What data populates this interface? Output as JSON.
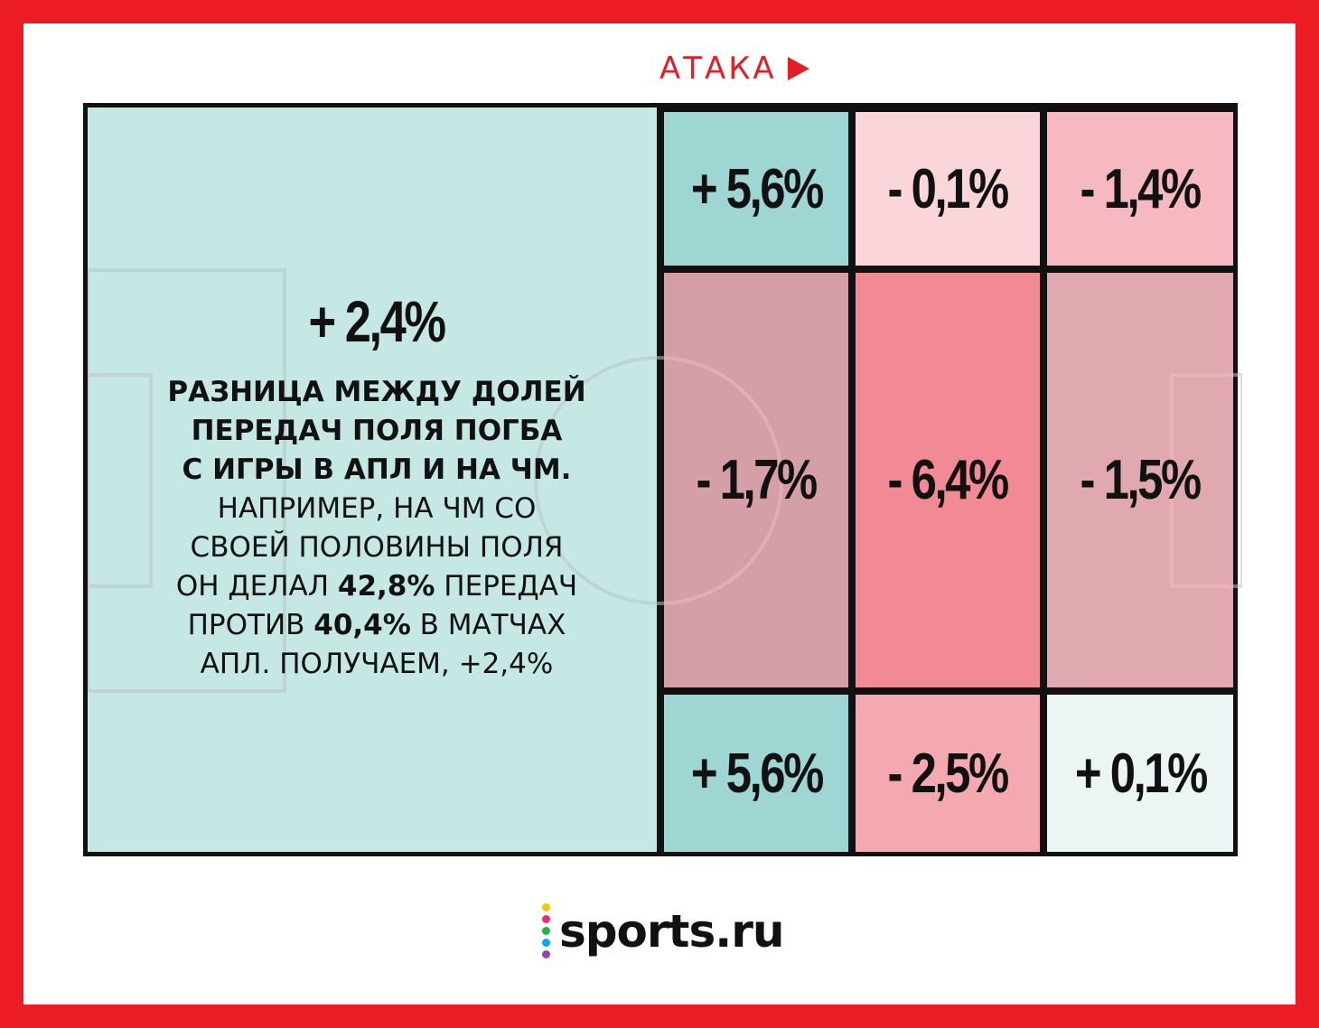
{
  "header": {
    "attack_label": "АТАКА"
  },
  "colors": {
    "frame": "#ec1c24",
    "teal_light": "#c6e8e5",
    "teal": "#9dd6d2",
    "pink_light": "#fad6da",
    "pink": "#f7b9c1",
    "pink_mid": "#f4a9b1",
    "pink_dark": "#f28a96",
    "near_white": "#eaf5f4"
  },
  "chart_data": {
    "type": "heatmap",
    "title": "",
    "zones": [
      {
        "zone": "own-half",
        "value": "+ 2,4%"
      },
      {
        "zone": "top-1",
        "value": "+ 5,6%"
      },
      {
        "zone": "top-2",
        "value": "- 0,1%"
      },
      {
        "zone": "top-3",
        "value": "- 1,4%"
      },
      {
        "zone": "middle-1",
        "value": "- 1,7%"
      },
      {
        "zone": "middle-2",
        "value": "- 6,4%"
      },
      {
        "zone": "middle-3",
        "value": "- 1,5%"
      },
      {
        "zone": "bottom-1",
        "value": "+ 5,6%"
      },
      {
        "zone": "bottom-2",
        "value": "- 2,5%"
      },
      {
        "zone": "bottom-3",
        "value": "+ 0,1%"
      }
    ]
  },
  "description": {
    "line1": "РАЗНИЦА МЕЖДУ ДОЛЕЙ",
    "line2": "ПЕРЕДАЧ ПОЛЯ ПОГБА",
    "line3": "С ИГРЫ В АПЛ И НА ЧМ.",
    "line4": "НАПРИМЕР, НА ЧМ СО",
    "line5": "СВОЕЙ ПОЛОВИНЫ ПОЛЯ",
    "line6a": "ОН ДЕЛАЛ ",
    "line6b": "42,8%",
    "line6c": " ПЕРЕДАЧ",
    "line7a": "ПРОТИВ ",
    "line7b": "40,4%",
    "line7c": " В МАТЧАХ",
    "line8": "АПЛ. ПОЛУЧАЕМ, +2,4%"
  },
  "logo": {
    "text": "sports.ru"
  }
}
